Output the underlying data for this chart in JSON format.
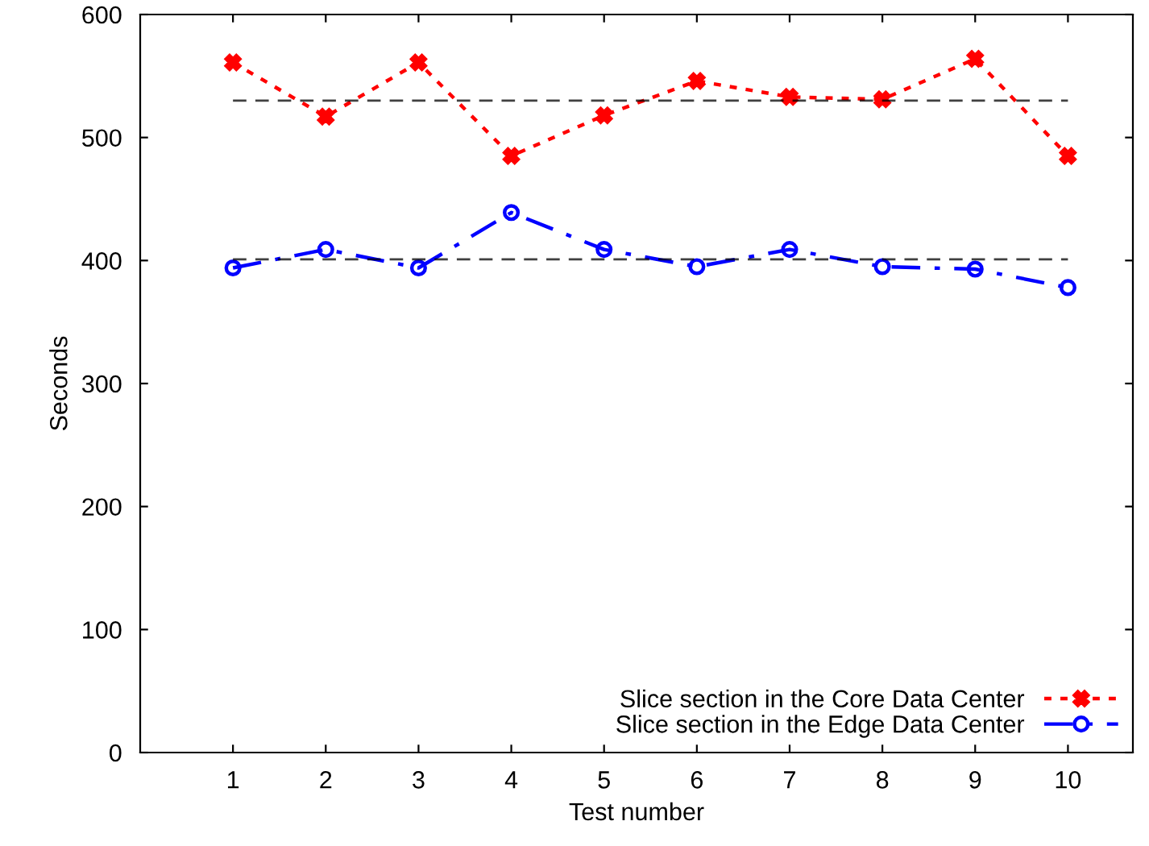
{
  "chart_data": {
    "type": "line",
    "xlabel": "Test number",
    "ylabel": "Seconds",
    "x": [
      1,
      2,
      3,
      4,
      5,
      6,
      7,
      8,
      9,
      10
    ],
    "series": [
      {
        "name": "Slice section in the Core Data Center",
        "color": "#ff0000",
        "marker": "cross",
        "line_style": "dotted",
        "values": [
          561,
          517,
          561,
          485,
          518,
          546,
          533,
          531,
          564,
          485
        ]
      },
      {
        "name": "Slice section in the Edge Data Center",
        "color": "#0000ff",
        "marker": "circle",
        "line_style": "dashdot",
        "values": [
          394,
          409,
          394,
          439,
          409,
          395,
          409,
          395,
          393,
          378
        ]
      }
    ],
    "ref_lines": [
      {
        "axis": "y",
        "value": 530,
        "color": "#000000",
        "line_style": "dashed"
      },
      {
        "axis": "y",
        "value": 401,
        "color": "#000000",
        "line_style": "dashed"
      }
    ],
    "xlim": [
      0,
      10.7
    ],
    "xticks": [
      1,
      2,
      3,
      4,
      5,
      6,
      7,
      8,
      9,
      10
    ],
    "ylim": [
      0,
      600
    ],
    "yticks": [
      0,
      100,
      200,
      300,
      400,
      500,
      600
    ],
    "grid": false,
    "legend": "bottom right"
  }
}
